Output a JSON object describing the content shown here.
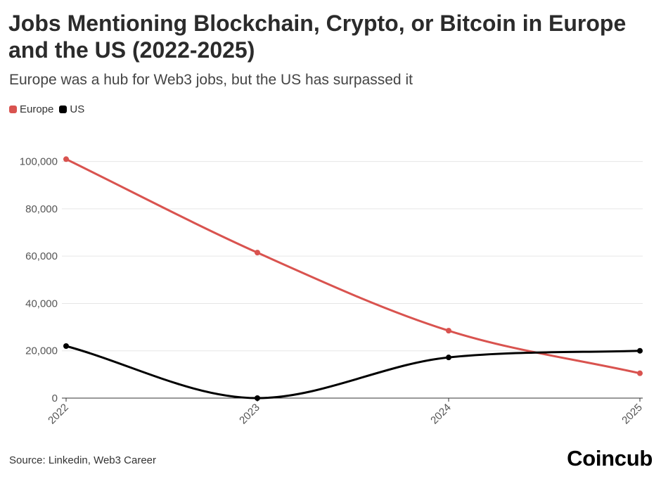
{
  "header": {
    "title": "Jobs Mentioning Blockchain, Crypto, or Bitcoin in Europe and the US (2022-2025)",
    "subtitle": "Europe was a hub for Web3 jobs, but the US has surpassed it"
  },
  "legend": [
    {
      "name": "Europe",
      "color": "#d9534f"
    },
    {
      "name": "US",
      "color": "#000000"
    }
  ],
  "footer": {
    "source": "Source: Linkedin, Web3 Career",
    "brand": "Coincub"
  },
  "chart_data": {
    "type": "line",
    "title": "Jobs Mentioning Blockchain, Crypto, or Bitcoin in Europe and the US (2022-2025)",
    "xlabel": "",
    "ylabel": "",
    "categories": [
      "2022",
      "2023",
      "2024",
      "2025"
    ],
    "ylim": [
      0,
      110000
    ],
    "yticks": [
      0,
      20000,
      40000,
      60000,
      80000,
      100000
    ],
    "ytick_labels": [
      "0",
      "20,000",
      "40,000",
      "60,000",
      "80,000",
      "100,000"
    ],
    "grid": true,
    "series": [
      {
        "name": "Europe",
        "color": "#d9534f",
        "values": [
          101000,
          61500,
          28500,
          10500
        ]
      },
      {
        "name": "US",
        "color": "#000000",
        "values": [
          22000,
          0,
          17200,
          20000
        ]
      }
    ]
  }
}
